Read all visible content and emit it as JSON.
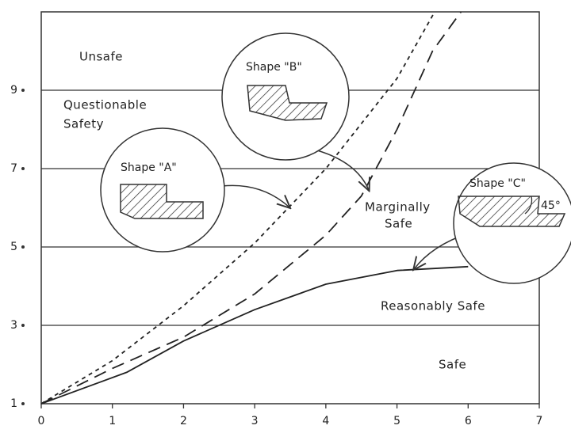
{
  "chart_data": {
    "type": "line",
    "xlim": [
      0,
      7
    ],
    "xticks": [
      0,
      1,
      2,
      3,
      4,
      5,
      6,
      7
    ],
    "ylim": [
      1,
      11
    ],
    "yticks": [
      1,
      3,
      5,
      7,
      9
    ],
    "grid": true,
    "series": [
      {
        "name": "Shape \"A\"",
        "color": "#222",
        "dash": "5,5",
        "x": [
          0,
          1,
          2,
          3,
          4,
          5,
          5.53
        ],
        "values": [
          1,
          2.1,
          3.5,
          5.1,
          7.0,
          9.3,
          11
        ]
      },
      {
        "name": "Shape \"B\"",
        "color": "#222",
        "dash": "16,9",
        "x": [
          0,
          1,
          2,
          3,
          4,
          4.5,
          5,
          5.5,
          5.9
        ],
        "values": [
          1,
          1.9,
          2.7,
          3.8,
          5.3,
          6.3,
          8.0,
          10,
          11
        ]
      },
      {
        "name": "Shape \"C\"",
        "color": "#222",
        "dash": "none",
        "x": [
          0,
          1.2,
          2,
          3,
          4,
          5,
          6
        ],
        "values": [
          1,
          1.8,
          2.6,
          3.4,
          4.05,
          4.4,
          4.5
        ]
      }
    ],
    "zones": [
      "Unsafe",
      "Questionable",
      "Safety",
      "Marginally",
      "Safe",
      "Reasonably Safe",
      "Safe"
    ],
    "angle_label": "45°"
  }
}
